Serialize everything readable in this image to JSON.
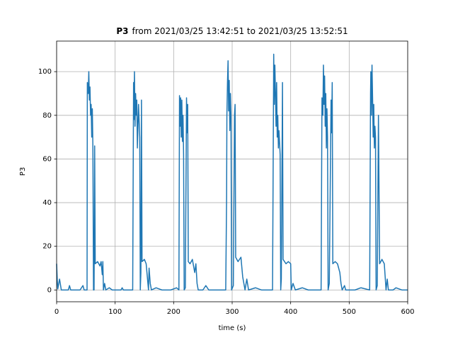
{
  "chart_data": {
    "type": "line",
    "title": {
      "name": "P3",
      "range": "from 2021/03/25 13:42:51 to 2021/03/25 13:52:51"
    },
    "xlabel": "time (s)",
    "ylabel": "P3",
    "xlim": [
      0,
      600
    ],
    "ylim": [
      -5.4,
      114
    ],
    "xticks": [
      0,
      100,
      200,
      300,
      400,
      500,
      600
    ],
    "yticks": [
      0,
      20,
      40,
      60,
      80,
      100
    ],
    "grid": true,
    "series": [
      {
        "name": "P3",
        "color": "#1f77b4",
        "x": [
          0,
          1,
          2,
          5,
          8,
          20,
          22,
          24,
          40,
          45,
          47,
          52,
          52.5,
          54,
          55,
          56,
          57,
          58,
          59,
          60,
          61,
          62,
          63,
          64,
          65,
          66,
          70,
          74,
          76,
          78,
          79,
          80,
          82,
          84,
          90,
          95,
          110,
          112,
          114,
          125,
          130,
          131.5,
          132,
          133,
          134,
          135,
          136,
          137,
          138,
          140,
          142,
          143,
          144,
          145,
          146,
          150,
          153,
          155,
          157,
          158,
          160,
          162,
          170,
          180,
          195,
          205,
          209,
          210,
          211,
          212,
          213,
          214,
          215,
          216,
          217,
          218,
          220,
          222,
          223,
          224,
          225,
          228,
          232,
          236,
          238,
          240,
          242,
          250,
          255,
          260,
          280,
          289,
          290.5,
          291,
          292,
          293,
          294,
          295,
          296,
          297,
          298,
          299,
          302,
          304,
          305,
          306,
          310,
          315,
          318,
          320,
          322,
          325,
          328,
          340,
          350,
          369,
          370.5,
          371,
          372,
          373,
          374,
          375,
          376,
          377,
          378,
          379,
          380,
          382,
          383,
          384,
          386,
          387,
          392,
          396,
          400,
          401,
          404,
          408,
          420,
          430,
          452,
          453.5,
          455,
          456,
          457,
          458,
          459,
          460,
          461,
          462,
          463,
          464,
          466,
          469,
          470,
          471,
          472,
          476,
          480,
          484,
          486,
          488,
          492,
          494,
          510,
          520,
          535,
          536.5,
          537,
          538,
          539,
          540,
          541,
          542,
          543,
          544,
          545,
          546,
          548,
          550,
          552,
          556,
          560,
          563,
          565,
          567,
          575,
          580,
          590,
          600
        ],
        "values": [
          12,
          5,
          0.5,
          5,
          0,
          0,
          2,
          0,
          0,
          2,
          0,
          0,
          95,
          90,
          100,
          87,
          93,
          80,
          85,
          70,
          83,
          65,
          0,
          0,
          66,
          12,
          13,
          11,
          13,
          7,
          13,
          0,
          3,
          0,
          1,
          0,
          0,
          1,
          0,
          0,
          0,
          95,
          78,
          100,
          75,
          90,
          80,
          87,
          65,
          85,
          70,
          0,
          8,
          87,
          13,
          14,
          12,
          6,
          0,
          10,
          3,
          0,
          1,
          0,
          0,
          1,
          0,
          89,
          75,
          88,
          70,
          87,
          68,
          80,
          62,
          0,
          1,
          88,
          72,
          85,
          13,
          12,
          14,
          8,
          12,
          3,
          0,
          0,
          2,
          0,
          0,
          0,
          43,
          80,
          95,
          105,
          82,
          96,
          73,
          90,
          80,
          0,
          2,
          80,
          85,
          15,
          13,
          15,
          6,
          3,
          0,
          5,
          0,
          1,
          0,
          0,
          80,
          108,
          85,
          103,
          90,
          75,
          95,
          70,
          80,
          65,
          73,
          62,
          0,
          5,
          95,
          14,
          12,
          13,
          12,
          0,
          3,
          0,
          1,
          0,
          0,
          88,
          80,
          103,
          85,
          98,
          75,
          90,
          65,
          83,
          70,
          0,
          3,
          87,
          72,
          95,
          12,
          13,
          12,
          8,
          3,
          0,
          2,
          0,
          0,
          1,
          0,
          90,
          100,
          80,
          103,
          88,
          70,
          85,
          65,
          75,
          70,
          0,
          2,
          80,
          12,
          14,
          12,
          0,
          5,
          0,
          0,
          1,
          0,
          0
        ]
      }
    ]
  }
}
